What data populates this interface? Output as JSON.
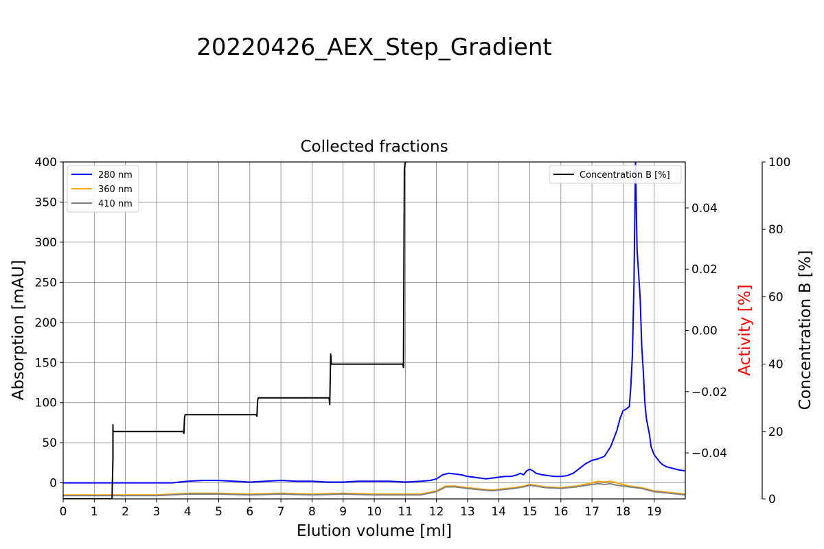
{
  "figure_title": "20220426_AEX_Step_Gradient",
  "chart_data": {
    "type": "line",
    "title": "Collected fractions",
    "xlabel": "Elution volume [ml]",
    "ylabel": "Absorption [mAU]",
    "ylabel2": "Activity [%]",
    "ylabel3": "Concentration B [%]",
    "xlim": [
      0,
      20
    ],
    "ylim": [
      -20,
      400
    ],
    "ylim2": [
      -0.055,
      0.055
    ],
    "ylim3": [
      0,
      100
    ],
    "xticks": [
      "0",
      "1",
      "2",
      "3",
      "4",
      "5",
      "6",
      "7",
      "8",
      "9",
      "10",
      "11",
      "12",
      "13",
      "14",
      "15",
      "16",
      "17",
      "18",
      "19"
    ],
    "yticks": [
      "0",
      "50",
      "100",
      "150",
      "200",
      "250",
      "300",
      "350",
      "400"
    ],
    "yticks2": [
      "−0.04",
      "−0.02",
      "0.00",
      "0.02",
      "0.04"
    ],
    "yticks3": [
      "0",
      "20",
      "40",
      "60",
      "80",
      "100"
    ],
    "grid": true,
    "colors": {
      "280 nm": "#0000ff",
      "360 nm": "#ffa500",
      "410 nm": "#808080",
      "Concentration B [%]": "#000000",
      "activity_axis_label": "#ff0000"
    },
    "legend_left": {
      "placement": "upper-left",
      "entries": [
        "280 nm",
        "360 nm",
        "410 nm"
      ]
    },
    "legend_right": {
      "placement": "upper-right",
      "entries": [
        "Concentration B [%]"
      ]
    },
    "series": [
      {
        "name": "280 nm",
        "axis": "absorption",
        "x": [
          0,
          1,
          2,
          3,
          3.5,
          4,
          4.5,
          5,
          5.5,
          6,
          6.5,
          7,
          7.5,
          8,
          8.5,
          9,
          9.5,
          10,
          10.5,
          11,
          11.5,
          11.8,
          12,
          12.2,
          12.4,
          12.6,
          12.8,
          13,
          13.2,
          13.4,
          13.6,
          13.8,
          14,
          14.2,
          14.4,
          14.6,
          14.7,
          14.8,
          14.9,
          15,
          15.1,
          15.2,
          15.4,
          15.6,
          15.8,
          16,
          16.2,
          16.4,
          16.6,
          16.8,
          17,
          17.2,
          17.4,
          17.6,
          17.8,
          17.9,
          18,
          18.1,
          18.2,
          18.25,
          18.3,
          18.35,
          18.4,
          18.45,
          18.5,
          18.55,
          18.6,
          18.65,
          18.7,
          18.75,
          18.8,
          18.85,
          18.9,
          18.95,
          19,
          19.1,
          19.2,
          19.3,
          19.4,
          19.5,
          19.6,
          19.7,
          19.8,
          20
        ],
        "y": [
          0,
          0,
          0,
          0,
          0,
          2,
          3,
          3,
          2,
          1,
          2,
          3,
          2,
          2,
          1,
          1,
          2,
          2,
          2,
          1,
          2,
          3,
          5,
          10,
          12,
          11,
          10,
          8,
          7,
          6,
          5,
          6,
          7,
          8,
          8,
          10,
          12,
          10,
          15,
          17,
          15,
          12,
          10,
          9,
          8,
          8,
          9,
          12,
          18,
          24,
          28,
          30,
          33,
          45,
          65,
          80,
          90,
          92,
          95,
          120,
          160,
          250,
          400,
          290,
          260,
          230,
          170,
          140,
          100,
          80,
          70,
          60,
          45,
          40,
          35,
          30,
          25,
          22,
          20,
          19,
          18,
          17,
          16,
          15
        ]
      },
      {
        "name": "360 nm",
        "axis": "absorption",
        "x": [
          0,
          1,
          2,
          3,
          4,
          5,
          6,
          7,
          8,
          9,
          10,
          11,
          11.5,
          12,
          12.3,
          12.6,
          13,
          13.5,
          13.8,
          14,
          14.5,
          14.8,
          15,
          15.2,
          15.5,
          16,
          16.5,
          17,
          17.2,
          17.4,
          17.6,
          17.8,
          18,
          18.2,
          18.4,
          18.6,
          18.8,
          19,
          19.5,
          20
        ],
        "y": [
          -15,
          -15,
          -15,
          -15,
          -13,
          -13,
          -14,
          -13,
          -14,
          -13,
          -14,
          -14,
          -14,
          -10,
          -4,
          -4,
          -6,
          -8,
          -9,
          -8,
          -6,
          -4,
          -2,
          -3,
          -5,
          -6,
          -4,
          0,
          2,
          1,
          2,
          0,
          -2,
          -4,
          -5,
          -6,
          -8,
          -10,
          -12,
          -14
        ]
      },
      {
        "name": "410 nm",
        "axis": "absorption",
        "x": [
          0,
          1,
          2,
          3,
          4,
          5,
          6,
          7,
          8,
          9,
          10,
          11,
          11.5,
          12,
          12.3,
          12.6,
          13,
          13.5,
          13.8,
          14,
          14.5,
          14.8,
          15,
          15.2,
          15.5,
          16,
          16.5,
          17,
          17.2,
          17.4,
          17.6,
          17.8,
          18,
          18.2,
          18.4,
          18.6,
          18.8,
          19,
          19.5,
          20
        ],
        "y": [
          -16,
          -16,
          -16,
          -16,
          -14,
          -14,
          -15,
          -14,
          -15,
          -14,
          -15,
          -15,
          -15,
          -11,
          -5,
          -5,
          -7,
          -9,
          -10,
          -9,
          -7,
          -5,
          -3,
          -4,
          -6,
          -7,
          -5,
          -2,
          -1,
          -2,
          -1,
          -3,
          -4,
          -5,
          -6,
          -7,
          -9,
          -11,
          -13,
          -15
        ]
      },
      {
        "name": "Concentration B [%]",
        "axis": "concentration",
        "x": [
          0,
          1.55,
          1.56,
          1.57,
          1.6,
          1.6,
          1.6,
          1.65,
          3.85,
          3.88,
          3.9,
          3.92,
          3.95,
          6.2,
          6.23,
          6.25,
          6.27,
          6.3,
          8.55,
          8.57,
          8.6,
          8.62,
          8.65,
          10.92,
          10.94,
          10.95,
          10.97,
          11,
          11.05
        ],
        "y": [
          0,
          0,
          0,
          -0.4,
          12,
          22,
          20,
          20,
          20,
          19.5,
          24,
          25,
          25,
          25,
          24.5,
          29,
          30,
          30,
          30,
          28,
          43,
          40,
          40,
          40,
          39,
          57,
          98,
          100,
          100
        ]
      }
    ]
  }
}
